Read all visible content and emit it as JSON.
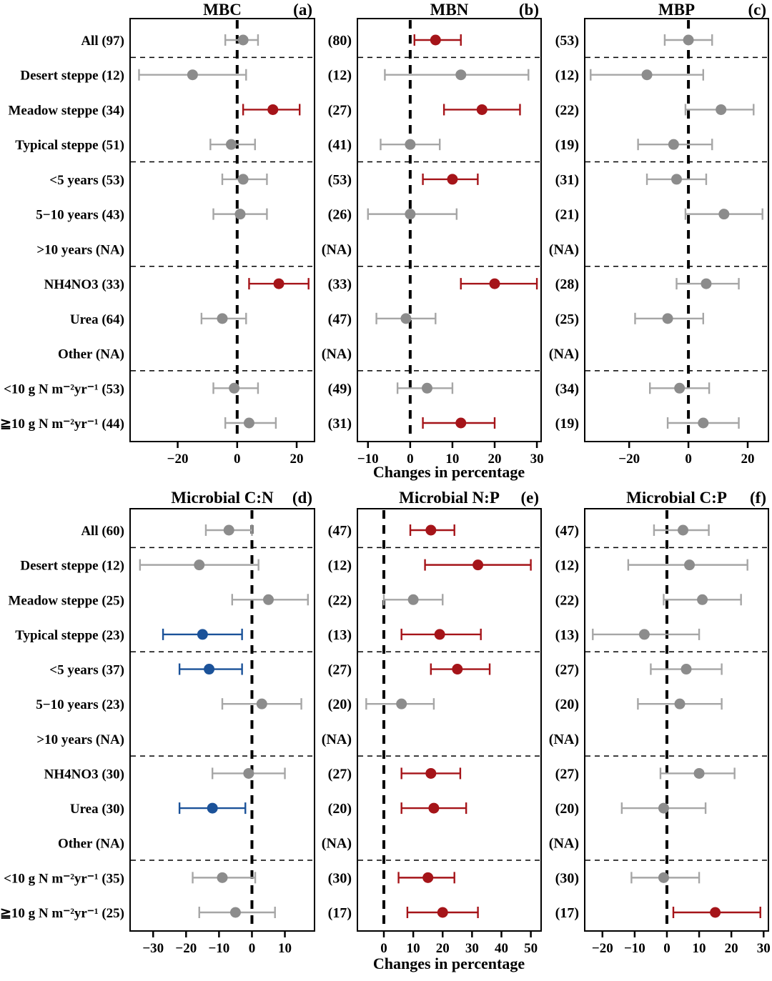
{
  "figure": {
    "xlabel_top": "Changes in percentage",
    "xlabel_bottom": "Changes in percentage"
  },
  "colors": {
    "significant_increase": "#a51419",
    "significant_decrease": "#1b5299",
    "nonsignificant_point": "#8c8c8c",
    "nonsignificant_bar": "#a6a6a6",
    "axis": "#000000"
  },
  "group_separators_after_rows": [
    0,
    3,
    6,
    9
  ],
  "chart_data": [
    {
      "panel_id": "a",
      "title": "MBC",
      "panel_label": "(a)",
      "type": "scatter",
      "xlim": [
        -36,
        26
      ],
      "xticks": [
        -20,
        0,
        20
      ],
      "zero_line": true,
      "rows": [
        {
          "label": "All (97)",
          "mean": 2,
          "lo": -4,
          "hi": 7,
          "sig": "ns"
        },
        {
          "label": "Desert steppe (12)",
          "mean": -15,
          "lo": -33,
          "hi": 3,
          "sig": "ns"
        },
        {
          "label": "Meadow steppe (34)",
          "mean": 12,
          "lo": 2,
          "hi": 21,
          "sig": "pos"
        },
        {
          "label": "Typical steppe (51)",
          "mean": -2,
          "lo": -9,
          "hi": 6,
          "sig": "ns"
        },
        {
          "label": "<5 years (53)",
          "mean": 2,
          "lo": -5,
          "hi": 10,
          "sig": "ns"
        },
        {
          "label": "5−10 years (43)",
          "mean": 1,
          "lo": -8,
          "hi": 10,
          "sig": "ns"
        },
        {
          "label": ">10 years (NA)",
          "mean": null,
          "lo": null,
          "hi": null,
          "sig": "na"
        },
        {
          "label": "NH4NO3 (33)",
          "mean": 14,
          "lo": 4,
          "hi": 24,
          "sig": "pos"
        },
        {
          "label": "Urea (64)",
          "mean": -5,
          "lo": -12,
          "hi": 3,
          "sig": "ns"
        },
        {
          "label": "Other (NA)",
          "mean": null,
          "lo": null,
          "hi": null,
          "sig": "na"
        },
        {
          "label": "<10 g N m⁻²yr⁻¹ (53)",
          "mean": -1,
          "lo": -8,
          "hi": 7,
          "sig": "ns"
        },
        {
          "label": "≧10 g N m⁻²yr⁻¹ (44)",
          "mean": 4,
          "lo": -4,
          "hi": 13,
          "sig": "ns"
        }
      ]
    },
    {
      "panel_id": "b",
      "title": "MBN",
      "panel_label": "(b)",
      "type": "scatter",
      "xlim": [
        -12.5,
        31
      ],
      "xticks": [
        -10,
        0,
        10,
        20,
        30
      ],
      "zero_line": true,
      "rows": [
        {
          "count": "(80)",
          "mean": 6,
          "lo": 1,
          "hi": 12,
          "sig": "pos"
        },
        {
          "count": "(12)",
          "mean": 12,
          "lo": -6,
          "hi": 28,
          "sig": "ns"
        },
        {
          "count": "(27)",
          "mean": 17,
          "lo": 8,
          "hi": 26,
          "sig": "pos"
        },
        {
          "count": "(41)",
          "mean": 0,
          "lo": -7,
          "hi": 7,
          "sig": "ns"
        },
        {
          "count": "(53)",
          "mean": 10,
          "lo": 3,
          "hi": 16,
          "sig": "pos"
        },
        {
          "count": "(26)",
          "mean": 0,
          "lo": -10,
          "hi": 11,
          "sig": "ns"
        },
        {
          "count": "(NA)",
          "mean": null,
          "lo": null,
          "hi": null,
          "sig": "na"
        },
        {
          "count": "(33)",
          "mean": 20,
          "lo": 12,
          "hi": 30,
          "sig": "pos"
        },
        {
          "count": "(47)",
          "mean": -1,
          "lo": -8,
          "hi": 6,
          "sig": "ns"
        },
        {
          "count": "(NA)",
          "mean": null,
          "lo": null,
          "hi": null,
          "sig": "na"
        },
        {
          "count": "(49)",
          "mean": 4,
          "lo": -3,
          "hi": 10,
          "sig": "ns"
        },
        {
          "count": "(31)",
          "mean": 12,
          "lo": 3,
          "hi": 20,
          "sig": "pos"
        }
      ]
    },
    {
      "panel_id": "c",
      "title": "MBP",
      "panel_label": "(c)",
      "type": "scatter",
      "xlim": [
        -35,
        27
      ],
      "xticks": [
        -20,
        0,
        20
      ],
      "zero_line": true,
      "rows": [
        {
          "count": "(53)",
          "mean": 0,
          "lo": -8,
          "hi": 8,
          "sig": "ns"
        },
        {
          "count": "(12)",
          "mean": -14,
          "lo": -33,
          "hi": 5,
          "sig": "ns"
        },
        {
          "count": "(22)",
          "mean": 11,
          "lo": -1,
          "hi": 22,
          "sig": "ns"
        },
        {
          "count": "(19)",
          "mean": -5,
          "lo": -17,
          "hi": 8,
          "sig": "ns"
        },
        {
          "count": "(31)",
          "mean": -4,
          "lo": -14,
          "hi": 6,
          "sig": "ns"
        },
        {
          "count": "(21)",
          "mean": 12,
          "lo": -1,
          "hi": 25,
          "sig": "ns"
        },
        {
          "count": "(NA)",
          "mean": null,
          "lo": null,
          "hi": null,
          "sig": "na"
        },
        {
          "count": "(28)",
          "mean": 6,
          "lo": -4,
          "hi": 17,
          "sig": "ns"
        },
        {
          "count": "(25)",
          "mean": -7,
          "lo": -18,
          "hi": 5,
          "sig": "ns"
        },
        {
          "count": "(NA)",
          "mean": null,
          "lo": null,
          "hi": null,
          "sig": "na"
        },
        {
          "count": "(34)",
          "mean": -3,
          "lo": -13,
          "hi": 7,
          "sig": "ns"
        },
        {
          "count": "(19)",
          "mean": 5,
          "lo": -7,
          "hi": 17,
          "sig": "ns"
        }
      ]
    },
    {
      "panel_id": "d",
      "title": "Microbial C:N",
      "panel_label": "(d)",
      "type": "scatter",
      "xlim": [
        -37,
        19
      ],
      "xticks": [
        -30,
        -20,
        -10,
        0,
        10
      ],
      "zero_line": true,
      "rows": [
        {
          "label": "All (60)",
          "mean": -7,
          "lo": -14,
          "hi": 0,
          "sig": "ns"
        },
        {
          "label": "Desert steppe (12)",
          "mean": -16,
          "lo": -34,
          "hi": 2,
          "sig": "ns"
        },
        {
          "label": "Meadow steppe (25)",
          "mean": 5,
          "lo": -6,
          "hi": 17,
          "sig": "ns"
        },
        {
          "label": "Typical steppe (23)",
          "mean": -15,
          "lo": -27,
          "hi": -3,
          "sig": "neg"
        },
        {
          "label": "<5 years (37)",
          "mean": -13,
          "lo": -22,
          "hi": -3,
          "sig": "neg"
        },
        {
          "label": "5−10 years (23)",
          "mean": 3,
          "lo": -9,
          "hi": 15,
          "sig": "ns"
        },
        {
          "label": ">10 years (NA)",
          "mean": null,
          "lo": null,
          "hi": null,
          "sig": "na"
        },
        {
          "label": "NH4NO3 (30)",
          "mean": -1,
          "lo": -12,
          "hi": 10,
          "sig": "ns"
        },
        {
          "label": "Urea (30)",
          "mean": -12,
          "lo": -22,
          "hi": -2,
          "sig": "neg"
        },
        {
          "label": "Other (NA)",
          "mean": null,
          "lo": null,
          "hi": null,
          "sig": "na"
        },
        {
          "label": "<10 g N m⁻²yr⁻¹ (35)",
          "mean": -9,
          "lo": -18,
          "hi": 1,
          "sig": "ns"
        },
        {
          "label": "≧10 g N m⁻²yr⁻¹ (25)",
          "mean": -5,
          "lo": -16,
          "hi": 7,
          "sig": "ns"
        }
      ]
    },
    {
      "panel_id": "e",
      "title": "Microbial N:P",
      "panel_label": "(e)",
      "type": "scatter",
      "xlim": [
        -9,
        53.5
      ],
      "xticks": [
        0,
        10,
        20,
        30,
        40,
        50
      ],
      "zero_line": true,
      "rows": [
        {
          "count": "(47)",
          "mean": 16,
          "lo": 9,
          "hi": 24,
          "sig": "pos"
        },
        {
          "count": "(12)",
          "mean": 32,
          "lo": 14,
          "hi": 50,
          "sig": "pos"
        },
        {
          "count": "(22)",
          "mean": 10,
          "lo": 0,
          "hi": 20,
          "sig": "ns"
        },
        {
          "count": "(13)",
          "mean": 19,
          "lo": 6,
          "hi": 33,
          "sig": "pos"
        },
        {
          "count": "(27)",
          "mean": 25,
          "lo": 16,
          "hi": 36,
          "sig": "pos"
        },
        {
          "count": "(20)",
          "mean": 6,
          "lo": -6,
          "hi": 17,
          "sig": "ns"
        },
        {
          "count": "(NA)",
          "mean": null,
          "lo": null,
          "hi": null,
          "sig": "na"
        },
        {
          "count": "(27)",
          "mean": 16,
          "lo": 6,
          "hi": 26,
          "sig": "pos"
        },
        {
          "count": "(20)",
          "mean": 17,
          "lo": 6,
          "hi": 28,
          "sig": "pos"
        },
        {
          "count": "(NA)",
          "mean": null,
          "lo": null,
          "hi": null,
          "sig": "na"
        },
        {
          "count": "(30)",
          "mean": 15,
          "lo": 5,
          "hi": 24,
          "sig": "pos"
        },
        {
          "count": "(17)",
          "mean": 20,
          "lo": 8,
          "hi": 32,
          "sig": "pos"
        }
      ]
    },
    {
      "panel_id": "f",
      "title": "Microbial C:P",
      "panel_label": "(f)",
      "type": "scatter",
      "xlim": [
        -25.5,
        31.5
      ],
      "xticks": [
        -20,
        -10,
        0,
        10,
        20,
        30
      ],
      "zero_line": true,
      "rows": [
        {
          "count": "(47)",
          "mean": 5,
          "lo": -4,
          "hi": 13,
          "sig": "ns"
        },
        {
          "count": "(12)",
          "mean": 7,
          "lo": -12,
          "hi": 25,
          "sig": "ns"
        },
        {
          "count": "(22)",
          "mean": 11,
          "lo": -1,
          "hi": 23,
          "sig": "ns"
        },
        {
          "count": "(13)",
          "mean": -7,
          "lo": -23,
          "hi": 10,
          "sig": "ns"
        },
        {
          "count": "(27)",
          "mean": 6,
          "lo": -5,
          "hi": 17,
          "sig": "ns"
        },
        {
          "count": "(20)",
          "mean": 4,
          "lo": -9,
          "hi": 17,
          "sig": "ns"
        },
        {
          "count": "(NA)",
          "mean": null,
          "lo": null,
          "hi": null,
          "sig": "na"
        },
        {
          "count": "(27)",
          "mean": 10,
          "lo": -2,
          "hi": 21,
          "sig": "ns"
        },
        {
          "count": "(20)",
          "mean": -1,
          "lo": -14,
          "hi": 12,
          "sig": "ns"
        },
        {
          "count": "(NA)",
          "mean": null,
          "lo": null,
          "hi": null,
          "sig": "na"
        },
        {
          "count": "(30)",
          "mean": -1,
          "lo": -11,
          "hi": 10,
          "sig": "ns"
        },
        {
          "count": "(17)",
          "mean": 15,
          "lo": 2,
          "hi": 29,
          "sig": "pos"
        }
      ]
    }
  ]
}
